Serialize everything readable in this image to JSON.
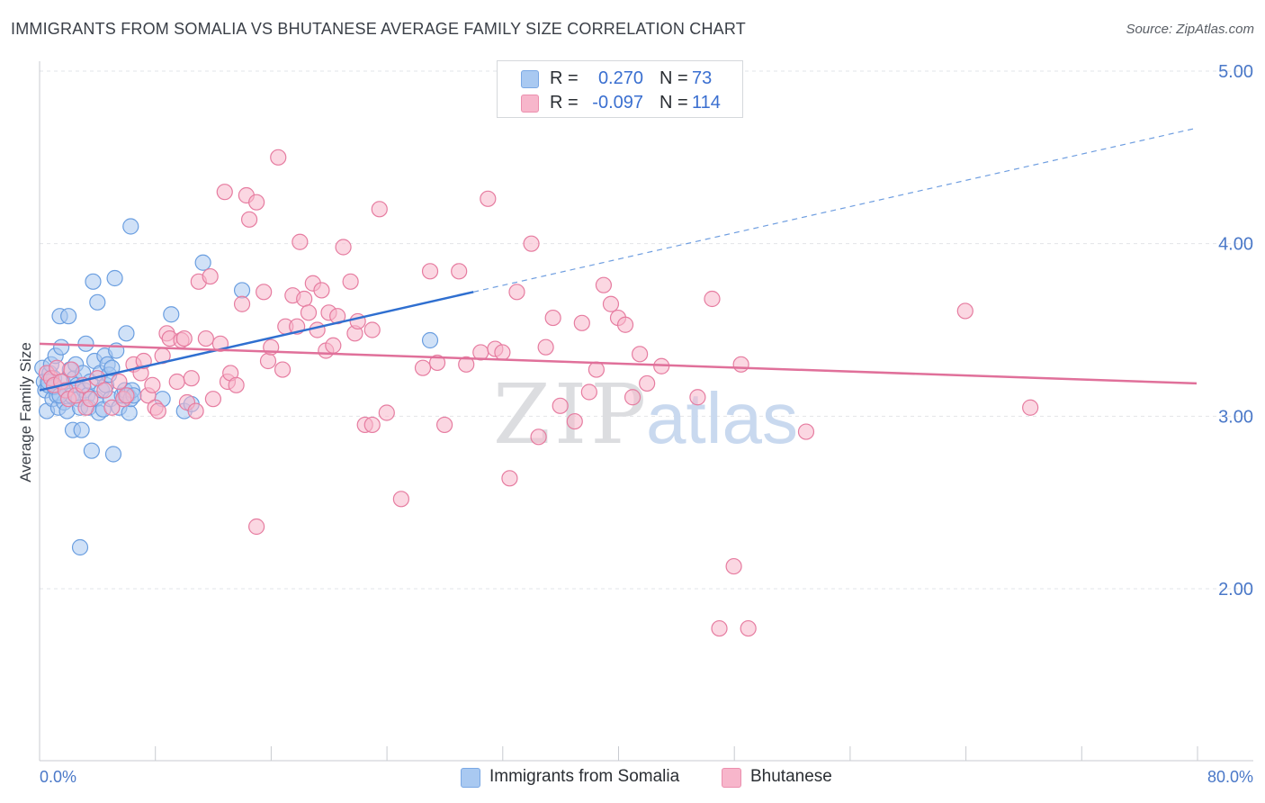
{
  "title": "IMMIGRANTS FROM SOMALIA VS BHUTANESE AVERAGE FAMILY SIZE CORRELATION CHART",
  "source": "Source: ZipAtlas.com",
  "legend": {
    "rows": [
      {
        "r_label": "R =",
        "r_value": "0.270",
        "n_label": "N =",
        "n_value": "73",
        "color": "#a9c9f1"
      },
      {
        "r_label": "R =",
        "r_value": "-0.097",
        "n_label": "N =",
        "n_value": "114",
        "color": "#f7b6cb"
      }
    ]
  },
  "bottom_legend": [
    {
      "label": "Immigrants from Somalia",
      "color": "#a9c9f1"
    },
    {
      "label": "Bhutanese",
      "color": "#f7b6cb"
    }
  ],
  "watermark": {
    "zip": "ZIP",
    "atlas": "atlas"
  },
  "chart_data": {
    "type": "scatter",
    "title": "IMMIGRANTS FROM SOMALIA VS BHUTANESE AVERAGE FAMILY SIZE CORRELATION CHART",
    "xlabel": "",
    "ylabel": "Average Family Size",
    "xlim": [
      0,
      80
    ],
    "ylim": [
      1.0,
      5.1
    ],
    "x_tick_labels": [
      "0.0%",
      "80.0%"
    ],
    "y_ticks": [
      2.0,
      3.0,
      4.0,
      5.0
    ],
    "y_tick_labels": [
      "2.00",
      "3.00",
      "4.00",
      "5.00"
    ],
    "grid": "horizontal dashed",
    "legend_position": "top-center",
    "series": [
      {
        "name": "Immigrants from Somalia",
        "color": "#6a9ee0",
        "fill": "#a9c9f1",
        "trend": {
          "x0": 0,
          "y0": 3.15,
          "x1": 30,
          "y1": 3.72,
          "dashed_to_x": 80,
          "dashed_to_y": 4.67
        },
        "points": [
          [
            0.2,
            3.28
          ],
          [
            0.3,
            3.2
          ],
          [
            0.4,
            3.15
          ],
          [
            0.5,
            3.03
          ],
          [
            0.6,
            3.18
          ],
          [
            0.7,
            3.25
          ],
          [
            0.8,
            3.3
          ],
          [
            0.9,
            3.1
          ],
          [
            1.0,
            3.22
          ],
          [
            1.1,
            3.35
          ],
          [
            1.2,
            3.12
          ],
          [
            1.3,
            3.05
          ],
          [
            1.4,
            3.58
          ],
          [
            1.5,
            3.4
          ],
          [
            1.6,
            3.2
          ],
          [
            1.7,
            3.08
          ],
          [
            1.8,
            3.15
          ],
          [
            1.9,
            3.03
          ],
          [
            2.0,
            3.58
          ],
          [
            2.1,
            3.27
          ],
          [
            2.2,
            3.12
          ],
          [
            2.3,
            2.92
          ],
          [
            2.4,
            3.22
          ],
          [
            2.5,
            3.3
          ],
          [
            2.6,
            3.18
          ],
          [
            2.7,
            3.1
          ],
          [
            2.8,
            3.05
          ],
          [
            2.9,
            2.92
          ],
          [
            3.0,
            3.25
          ],
          [
            3.1,
            3.15
          ],
          [
            3.2,
            3.42
          ],
          [
            3.3,
            3.12
          ],
          [
            3.4,
            3.05
          ],
          [
            3.5,
            3.2
          ],
          [
            3.6,
            2.8
          ],
          [
            3.7,
            3.78
          ],
          [
            3.8,
            3.32
          ],
          [
            3.9,
            3.1
          ],
          [
            4.0,
            3.66
          ],
          [
            4.1,
            3.02
          ],
          [
            4.2,
            3.25
          ],
          [
            4.3,
            3.15
          ],
          [
            4.4,
            3.04
          ],
          [
            4.5,
            3.35
          ],
          [
            4.6,
            3.18
          ],
          [
            4.7,
            3.3
          ],
          [
            4.8,
            3.24
          ],
          [
            4.9,
            3.1
          ],
          [
            5.0,
            3.28
          ],
          [
            5.1,
            2.78
          ],
          [
            5.2,
            3.8
          ],
          [
            5.3,
            3.38
          ],
          [
            5.5,
            3.05
          ],
          [
            5.7,
            3.12
          ],
          [
            5.9,
            3.15
          ],
          [
            6.0,
            3.48
          ],
          [
            6.1,
            3.12
          ],
          [
            6.2,
            3.02
          ],
          [
            6.3,
            3.1
          ],
          [
            6.4,
            3.15
          ],
          [
            6.5,
            3.12
          ],
          [
            2.8,
            2.24
          ],
          [
            6.3,
            4.1
          ],
          [
            8.5,
            3.1
          ],
          [
            9.1,
            3.59
          ],
          [
            10.0,
            3.03
          ],
          [
            10.5,
            3.07
          ],
          [
            11.3,
            3.89
          ],
          [
            14.0,
            3.73
          ],
          [
            0.6,
            3.2
          ],
          [
            1.0,
            3.17
          ],
          [
            1.4,
            3.12
          ],
          [
            27.0,
            3.44
          ]
        ]
      },
      {
        "name": "Bhutanese",
        "color": "#e67ca0",
        "fill": "#f7b6cb",
        "trend": {
          "x0": 0,
          "y0": 3.42,
          "x1": 80,
          "y1": 3.19
        },
        "points": [
          [
            0.5,
            3.25
          ],
          [
            0.8,
            3.22
          ],
          [
            1.0,
            3.18
          ],
          [
            1.2,
            3.28
          ],
          [
            1.5,
            3.2
          ],
          [
            1.8,
            3.15
          ],
          [
            2.0,
            3.1
          ],
          [
            2.2,
            3.27
          ],
          [
            2.5,
            3.12
          ],
          [
            3.0,
            3.18
          ],
          [
            3.2,
            3.05
          ],
          [
            3.5,
            3.1
          ],
          [
            4.0,
            3.22
          ],
          [
            4.5,
            3.15
          ],
          [
            5.0,
            3.05
          ],
          [
            5.5,
            3.2
          ],
          [
            5.8,
            3.1
          ],
          [
            6.0,
            3.12
          ],
          [
            6.5,
            3.3
          ],
          [
            7.0,
            3.25
          ],
          [
            7.2,
            3.32
          ],
          [
            7.5,
            3.12
          ],
          [
            7.8,
            3.18
          ],
          [
            8.0,
            3.05
          ],
          [
            8.2,
            3.03
          ],
          [
            8.5,
            3.35
          ],
          [
            8.8,
            3.48
          ],
          [
            9.0,
            3.45
          ],
          [
            9.5,
            3.2
          ],
          [
            9.8,
            3.44
          ],
          [
            10.0,
            3.45
          ],
          [
            10.2,
            3.08
          ],
          [
            10.5,
            3.22
          ],
          [
            10.8,
            3.03
          ],
          [
            11.0,
            3.78
          ],
          [
            11.5,
            3.45
          ],
          [
            11.8,
            3.81
          ],
          [
            12.0,
            3.1
          ],
          [
            12.5,
            3.42
          ],
          [
            12.8,
            4.3
          ],
          [
            13.0,
            3.2
          ],
          [
            13.2,
            3.25
          ],
          [
            13.6,
            3.18
          ],
          [
            14.0,
            3.65
          ],
          [
            14.3,
            4.28
          ],
          [
            14.5,
            4.14
          ],
          [
            15.0,
            4.24
          ],
          [
            15.5,
            3.72
          ],
          [
            15.8,
            3.32
          ],
          [
            16.0,
            3.4
          ],
          [
            16.5,
            4.5
          ],
          [
            16.8,
            3.27
          ],
          [
            17.0,
            3.52
          ],
          [
            17.5,
            3.7
          ],
          [
            17.8,
            3.52
          ],
          [
            18.0,
            4.01
          ],
          [
            18.3,
            3.68
          ],
          [
            18.6,
            3.6
          ],
          [
            18.9,
            3.77
          ],
          [
            19.2,
            3.5
          ],
          [
            19.5,
            3.73
          ],
          [
            19.8,
            3.38
          ],
          [
            20.0,
            3.6
          ],
          [
            20.3,
            3.41
          ],
          [
            20.6,
            3.58
          ],
          [
            21.0,
            3.98
          ],
          [
            21.5,
            3.78
          ],
          [
            21.8,
            3.48
          ],
          [
            22.0,
            3.55
          ],
          [
            22.5,
            2.95
          ],
          [
            23.0,
            3.5
          ],
          [
            23.5,
            4.2
          ],
          [
            24.0,
            3.02
          ],
          [
            25.0,
            2.52
          ],
          [
            26.5,
            3.28
          ],
          [
            27.0,
            3.84
          ],
          [
            27.5,
            3.31
          ],
          [
            28.0,
            2.95
          ],
          [
            29.0,
            3.84
          ],
          [
            29.5,
            3.3
          ],
          [
            30.5,
            3.37
          ],
          [
            31.0,
            4.26
          ],
          [
            31.5,
            3.39
          ],
          [
            32.0,
            3.37
          ],
          [
            33.0,
            3.72
          ],
          [
            34.0,
            4.0
          ],
          [
            34.5,
            2.88
          ],
          [
            35.0,
            3.4
          ],
          [
            35.5,
            3.57
          ],
          [
            36.0,
            3.06
          ],
          [
            37.0,
            2.97
          ],
          [
            37.5,
            3.54
          ],
          [
            38.0,
            3.14
          ],
          [
            38.5,
            3.27
          ],
          [
            39.0,
            3.76
          ],
          [
            39.5,
            3.65
          ],
          [
            40.0,
            3.57
          ],
          [
            40.5,
            3.53
          ],
          [
            41.0,
            3.11
          ],
          [
            41.5,
            3.36
          ],
          [
            42.0,
            3.19
          ],
          [
            43.0,
            3.29
          ],
          [
            45.5,
            3.11
          ],
          [
            46.5,
            3.68
          ],
          [
            47.0,
            1.77
          ],
          [
            48.0,
            2.13
          ],
          [
            48.5,
            3.3
          ],
          [
            49.0,
            1.77
          ],
          [
            53.0,
            2.91
          ],
          [
            64.0,
            3.61
          ],
          [
            68.5,
            3.05
          ],
          [
            15.0,
            2.36
          ],
          [
            32.5,
            2.64
          ],
          [
            23.0,
            2.95
          ]
        ]
      }
    ]
  }
}
